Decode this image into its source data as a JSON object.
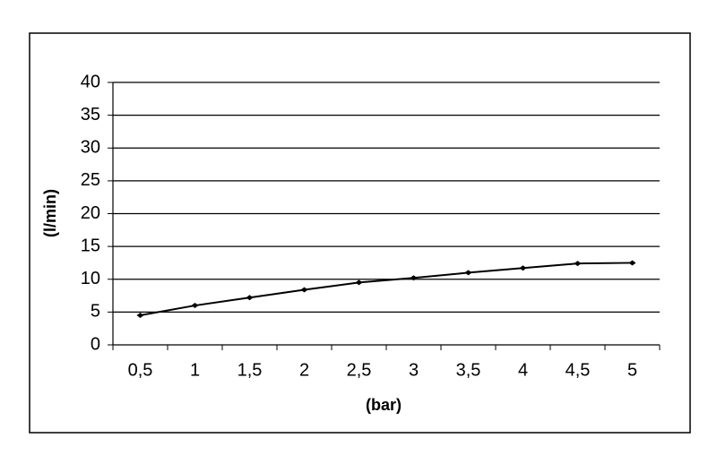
{
  "chart_data": {
    "type": "line",
    "x_label": "(bar)",
    "y_label": "(l/min)",
    "categories": [
      "0,5",
      "1",
      "1,5",
      "2",
      "2,5",
      "3",
      "3,5",
      "4",
      "4,5",
      "5"
    ],
    "series": [
      {
        "color": "#000000",
        "values": [
          4.5,
          6,
          7.2,
          8.4,
          9.5,
          10.2,
          11,
          11.7,
          12.4,
          12.5
        ]
      }
    ],
    "ylim": [
      0,
      40
    ],
    "yticks": [
      0,
      5,
      10,
      15,
      20,
      25,
      30,
      35,
      40
    ],
    "grid": true
  }
}
